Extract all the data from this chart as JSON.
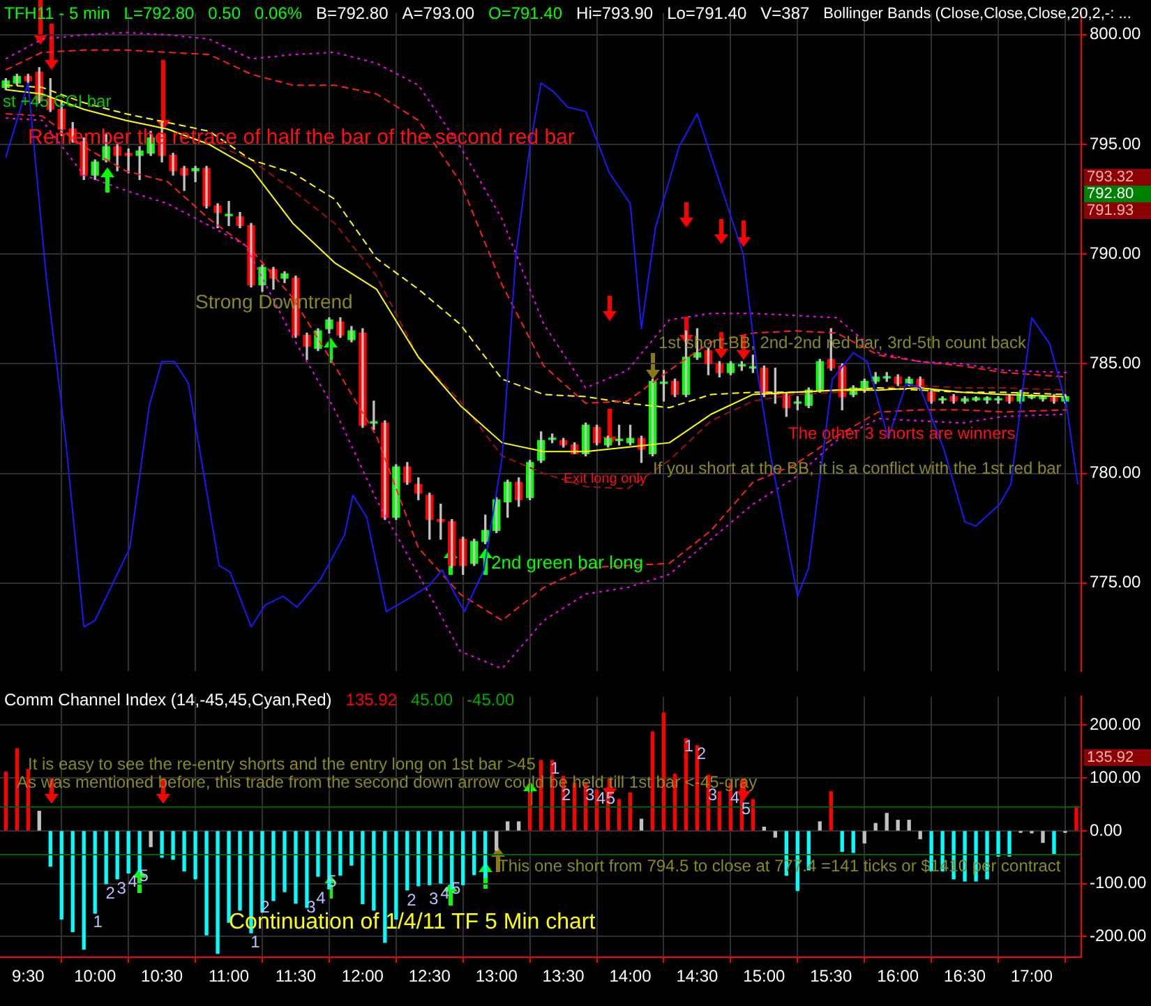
{
  "chart_data": [
    {
      "type": "candlestick",
      "title": "TFH11 - 5 min",
      "x": [
        9.3333,
        9.4167,
        9.5,
        9.5833,
        9.6667,
        9.75,
        9.8333,
        9.9167,
        10,
        10.0833,
        10.1667,
        10.25,
        10.3333,
        10.4167,
        10.5,
        10.5833,
        10.6667,
        10.75,
        10.8333,
        10.9167,
        11,
        11.0833,
        11.1667,
        11.25,
        11.3333,
        11.4167,
        11.5,
        11.5833,
        11.6667,
        11.75,
        11.8333,
        11.9167,
        12,
        12.0833,
        12.1667,
        12.25,
        12.3333,
        12.4167,
        12.5,
        12.5833,
        12.6667,
        12.75,
        12.8333,
        12.9167,
        13,
        13.0833,
        13.1667,
        13.25,
        13.3333,
        13.4167,
        13.5,
        13.5833,
        13.6667,
        13.75,
        13.8333,
        13.9167,
        14,
        14.0833,
        14.1667,
        14.25,
        14.3333,
        14.4167,
        14.5,
        14.5833,
        14.6667,
        14.75,
        14.8333,
        14.9167,
        15,
        15.0833,
        15.1667,
        15.25,
        15.3333,
        15.4167,
        15.5,
        15.5833,
        15.6667,
        15.75,
        15.8333,
        15.9167,
        16,
        16.0833,
        16.1667,
        16.25,
        16.3333,
        16.4167,
        16.5,
        16.5833,
        16.6667,
        16.75,
        16.8333,
        16.9167,
        17,
        17.0833,
        17.1667,
        17.25
      ],
      "ohlc": [
        [
          797.6,
          798.0,
          797.5,
          797.9
        ],
        [
          797.8,
          798.2,
          797.7,
          798.1
        ],
        [
          798.1,
          798.2,
          797.8,
          797.9
        ],
        [
          798.3,
          798.5,
          796.9,
          797.0
        ],
        [
          797.1,
          798.0,
          796.5,
          796.6
        ],
        [
          796.6,
          797.0,
          795.4,
          795.7
        ],
        [
          795.7,
          796.0,
          795.1,
          795.2
        ],
        [
          795.1,
          795.3,
          793.4,
          793.6
        ],
        [
          793.6,
          794.3,
          793.4,
          794.2
        ],
        [
          794.3,
          795.5,
          794.2,
          794.9
        ],
        [
          794.9,
          795.0,
          793.8,
          794.5
        ],
        [
          794.6,
          794.8,
          793.7,
          794.5
        ],
        [
          794.5,
          794.9,
          793.4,
          794.7
        ],
        [
          794.6,
          795.6,
          794.5,
          795.3
        ],
        [
          795.5,
          796.0,
          794.2,
          794.5
        ],
        [
          794.5,
          794.6,
          793.6,
          793.8
        ],
        [
          793.9,
          794.0,
          792.9,
          793.6
        ],
        [
          793.8,
          794.0,
          793.3,
          793.9
        ],
        [
          793.9,
          794.0,
          792.1,
          792.2
        ],
        [
          792.2,
          792.3,
          791.2,
          791.9
        ],
        [
          791.75,
          792.4,
          791.3,
          791.8
        ],
        [
          791.7,
          791.9,
          791.2,
          791.3
        ],
        [
          791.3,
          791.4,
          788.5,
          788.6
        ],
        [
          788.6,
          789.5,
          788.3,
          789.4
        ],
        [
          789.3,
          789.4,
          788.4,
          788.9
        ],
        [
          788.9,
          789.2,
          788.7,
          789.1
        ],
        [
          788.9,
          789.0,
          786.2,
          786.3
        ],
        [
          786.3,
          786.4,
          785.2,
          785.8
        ],
        [
          785.7,
          786.6,
          785.6,
          786.5
        ],
        [
          786.6,
          787.1,
          786.4,
          787.0
        ],
        [
          786.9,
          787.1,
          786.2,
          786.3
        ],
        [
          786.1,
          786.7,
          786.0,
          786.5
        ],
        [
          786.4,
          786.6,
          782.1,
          782.2
        ],
        [
          782.3,
          783.3,
          782.0,
          782.3
        ],
        [
          782.3,
          782.4,
          777.9,
          778.0
        ],
        [
          778.0,
          780.4,
          777.9,
          780.3
        ],
        [
          780.3,
          780.5,
          779.5,
          779.6
        ],
        [
          779.5,
          779.8,
          778.8,
          779.1
        ],
        [
          779.0,
          779.1,
          777.0,
          777.9
        ],
        [
          777.9,
          778.6,
          777.0,
          777.8
        ],
        [
          777.8,
          777.9,
          775.7,
          775.8
        ],
        [
          777.0,
          777.1,
          775.4,
          775.8
        ],
        [
          775.9,
          777.0,
          775.8,
          776.9
        ],
        [
          776.9,
          778.1,
          776.8,
          777.4
        ],
        [
          777.4,
          778.9,
          777.3,
          778.8
        ],
        [
          778.7,
          779.7,
          778.0,
          779.6
        ],
        [
          779.6,
          779.8,
          778.5,
          778.8
        ],
        [
          778.9,
          780.6,
          778.8,
          780.5
        ],
        [
          780.6,
          781.9,
          780.5,
          781.5
        ],
        [
          781.55,
          781.8,
          781.4,
          781.6
        ],
        [
          781.5,
          781.6,
          781.2,
          781.3
        ],
        [
          781.3,
          781.4,
          780.9,
          780.9
        ],
        [
          780.9,
          782.3,
          780.8,
          782.2
        ],
        [
          782.1,
          782.2,
          781.3,
          781.4
        ],
        [
          781.3,
          781.7,
          781.2,
          781.6
        ],
        [
          781.5,
          782.2,
          781.3,
          781.5
        ],
        [
          781.4,
          782.2,
          781.3,
          781.6
        ],
        [
          781.6,
          781.7,
          780.5,
          781.1
        ],
        [
          780.9,
          784.3,
          780.8,
          784.2
        ],
        [
          784.1,
          784.7,
          783.3,
          784.1
        ],
        [
          784.2,
          784.3,
          783.5,
          783.6
        ],
        [
          783.6,
          786.5,
          783.5,
          785.3
        ],
        [
          785.3,
          786.6,
          785.2,
          785.5
        ],
        [
          785.6,
          785.7,
          784.5,
          785.0
        ],
        [
          785.0,
          785.1,
          784.4,
          784.6
        ],
        [
          784.6,
          785.1,
          784.5,
          785.0
        ],
        [
          784.9,
          785.1,
          784.7,
          784.9
        ],
        [
          784.8,
          785.4,
          784.6,
          784.8
        ],
        [
          784.8,
          784.9,
          783.5,
          783.6
        ],
        [
          783.6,
          784.8,
          783.2,
          783.6
        ],
        [
          783.6,
          783.7,
          782.6,
          783.0
        ],
        [
          783.2,
          783.5,
          782.9,
          783.25
        ],
        [
          783.1,
          783.9,
          783.0,
          783.8
        ],
        [
          783.8,
          785.2,
          783.7,
          785.1
        ],
        [
          785.2,
          786.6,
          784.7,
          784.8
        ],
        [
          784.9,
          785.0,
          782.9,
          783.5
        ],
        [
          783.6,
          784.0,
          783.5,
          783.9
        ],
        [
          783.8,
          784.3,
          783.7,
          784.2
        ],
        [
          784.2,
          784.6,
          784.1,
          784.4
        ],
        [
          784.35,
          784.6,
          784.2,
          784.4
        ],
        [
          784.4,
          784.5,
          784.0,
          784.1
        ],
        [
          784.1,
          784.4,
          784.0,
          784.3
        ],
        [
          784.3,
          784.4,
          783.8,
          783.9
        ],
        [
          783.7,
          783.8,
          783.2,
          783.3
        ],
        [
          783.35,
          783.5,
          783.2,
          783.35
        ],
        [
          783.5,
          783.6,
          783.2,
          783.3
        ],
        [
          783.3,
          783.5,
          783.2,
          783.4
        ],
        [
          783.35,
          783.5,
          783.3,
          783.45
        ],
        [
          783.35,
          783.5,
          783.2,
          783.45
        ],
        [
          783.35,
          783.5,
          783.2,
          783.35
        ],
        [
          783.5,
          783.6,
          783.2,
          783.3
        ],
        [
          783.3,
          783.8,
          783.2,
          783.7
        ],
        [
          783.45,
          783.6,
          783.4,
          783.55
        ],
        [
          783.4,
          783.55,
          783.3,
          783.5
        ],
        [
          783.5,
          783.6,
          783.2,
          783.3
        ],
        [
          783.3,
          783.6,
          783.2,
          783.5
        ]
      ],
      "colors": [
        "#00ff00",
        "#00ff00",
        "#ff0000",
        "#ff0000",
        "#ff0000",
        "#ff0000",
        "#ff0000",
        "#ff0000",
        "#00ff00",
        "#00ff00",
        "#ff0000",
        "#ff0000",
        "#00ff00",
        "#00ff00",
        "#ff0000",
        "#ff0000",
        "#ff0000",
        "#00ff00",
        "#ff0000",
        "#ff0000",
        "#00ff00",
        "#ff0000",
        "#ff0000",
        "#00ff00",
        "#ff0000",
        "#00ff00",
        "#ff0000",
        "#ff0000",
        "#00ff00",
        "#00ff00",
        "#ff0000",
        "#00ff00",
        "#ff0000",
        "#00ff00",
        "#ff0000",
        "#00ff00",
        "#ff0000",
        "#ff0000",
        "#ff0000",
        "#ff0000",
        "#ff0000",
        "#ff0000",
        "#00ff00",
        "#00ff00",
        "#00ff00",
        "#00ff00",
        "#ff0000",
        "#00ff00",
        "#00ff00",
        "#00ff00",
        "#ff0000",
        "#ff0000",
        "#00ff00",
        "#ff0000",
        "#00ff00",
        "#00ff00",
        "#00ff00",
        "#ff0000",
        "#00ff00",
        "#00ff00",
        "#ff0000",
        "#00ff00",
        "#00ff00",
        "#ff0000",
        "#ff0000",
        "#00ff00",
        "#00ff00",
        "#00ff00",
        "#ff0000",
        "#ff0000",
        "#ff0000",
        "#00ff00",
        "#00ff00",
        "#00ff00",
        "#ff0000",
        "#ff0000",
        "#00ff00",
        "#00ff00",
        "#00ff00",
        "#00ff00",
        "#ff0000",
        "#00ff00",
        "#ff0000",
        "#ff0000",
        "#00ff00",
        "#ff0000",
        "#00ff00",
        "#00ff00",
        "#00ff00",
        "#00ff00",
        "#ff0000",
        "#00ff00",
        "#00ff00",
        "#00ff00",
        "#ff0000",
        "#00ff00"
      ],
      "series": [
        {
          "type": "line",
          "color": "#1a1aff",
          "line_style": "solid",
          "x": [
            9.333,
            9.5,
            9.635,
            9.781,
            9.917,
            10.0,
            10.26,
            10.406,
            10.5,
            10.594,
            10.698,
            10.823,
            10.927,
            11.01,
            11.167,
            11.271,
            11.406,
            11.51,
            11.688,
            11.865,
            11.927,
            12.031,
            12.177,
            12.344,
            12.5,
            12.594,
            12.76,
            12.906,
            13.042,
            13.146,
            13.25,
            13.333,
            13.427,
            13.531,
            13.667,
            13.844,
            14.0,
            14.083,
            14.188,
            14.365,
            14.5,
            14.677,
            14.844,
            14.948,
            15.052,
            15.25,
            15.333,
            15.51,
            15.667,
            15.771,
            15.927,
            16.063,
            16.167,
            16.344,
            16.5,
            16.583,
            16.76,
            16.844,
            17.0,
            17.135,
            17.26,
            17.344
          ],
          "values": [
            794.4,
            797.8,
            789.0,
            781.5,
            773.0,
            773.3,
            776.6,
            783.1,
            785.1,
            785.1,
            784.1,
            779.6,
            775.8,
            775.5,
            773.0,
            774.0,
            774.4,
            773.9,
            775.2,
            777.2,
            779.0,
            778.0,
            773.7,
            774.3,
            774.9,
            775.6,
            773.7,
            775.6,
            780.7,
            790.0,
            794.9,
            797.8,
            797.4,
            796.7,
            796.5,
            793.7,
            792.3,
            786.6,
            791.2,
            794.9,
            796.4,
            793.1,
            790.0,
            784.7,
            780.7,
            774.4,
            775.7,
            784.3,
            785.5,
            785.1,
            781.6,
            784.1,
            783.9,
            781.1,
            777.8,
            777.6,
            778.6,
            779.5,
            787.1,
            785.9,
            783.1,
            779.5
          ]
        },
        {
          "type": "line",
          "color": "#ff00ff",
          "line_style": "dotted",
          "x": [
            9.333,
            9.604,
            9.917,
            10.229,
            10.542,
            10.854,
            11.167,
            11.479,
            11.792,
            12.104,
            12.417,
            12.729,
            13.042,
            13.354,
            13.667,
            13.979,
            14.292,
            14.604,
            14.917,
            15.229,
            15.542,
            15.854,
            16.167,
            16.479,
            16.792,
            17.26
          ],
          "values": [
            798.9,
            799.8,
            800.0,
            800.1,
            800.0,
            799.8,
            798.9,
            799.1,
            799.2,
            798.7,
            797.7,
            794.9,
            791.6,
            786.8,
            783.9,
            784.7,
            787.0,
            787.3,
            787.3,
            787.2,
            787.1,
            785.5,
            785.1,
            785.0,
            784.7,
            784.6
          ]
        },
        {
          "type": "line",
          "color": "#ff00ff",
          "line_style": "dotted",
          "x": [
            9.333,
            9.604,
            9.917,
            10.229,
            10.542,
            10.854,
            11.125,
            11.479,
            11.792,
            12.104,
            12.417,
            12.729,
            13.042,
            13.354,
            13.667,
            13.979,
            14.292,
            14.604,
            14.917,
            15.229,
            15.542,
            15.854,
            16.167,
            16.479,
            16.792,
            17.26
          ],
          "values": [
            796.2,
            796.1,
            793.6,
            792.9,
            792.3,
            791.3,
            790.4,
            786.2,
            782.9,
            778.8,
            775.4,
            771.9,
            771.1,
            773.3,
            774.5,
            774.8,
            775.4,
            777.0,
            778.6,
            779.8,
            781.5,
            782.5,
            782.4,
            782.3,
            782.6,
            782.7
          ]
        },
        {
          "type": "line",
          "color": "#ff2020",
          "line_style": "dashed",
          "x": [
            9.333,
            9.604,
            9.917,
            10.229,
            10.542,
            10.854,
            11.167,
            11.479,
            11.792,
            12.104,
            12.417,
            12.729,
            13.042,
            13.354,
            13.667,
            13.979,
            14.292,
            14.604,
            14.917,
            15.229,
            15.542,
            15.854,
            16.167,
            16.479,
            16.792,
            17.26
          ],
          "values": [
            798.4,
            799.2,
            799.3,
            799.3,
            799.2,
            799.1,
            798.2,
            797.7,
            797.7,
            797.3,
            796.1,
            793.3,
            788.6,
            784.9,
            783.2,
            783.3,
            784.7,
            786.0,
            786.4,
            786.5,
            786.4,
            785.4,
            785.1,
            784.9,
            784.6,
            784.4
          ]
        },
        {
          "type": "line",
          "color": "#ff2020",
          "line_style": "dashed",
          "x": [
            9.333,
            9.604,
            9.917,
            10.229,
            10.542,
            10.854,
            11.167,
            11.479,
            11.792,
            12.104,
            12.417,
            12.729,
            13.042,
            13.354,
            13.667,
            13.979,
            14.292,
            14.604,
            14.917,
            15.229,
            15.542,
            15.854,
            16.167,
            16.479,
            16.792,
            17.26
          ],
          "values": [
            796.4,
            796.3,
            794.9,
            793.8,
            793.3,
            791.6,
            790.2,
            788.0,
            784.9,
            781.7,
            776.6,
            774.5,
            773.3,
            774.8,
            775.7,
            775.8,
            775.9,
            777.4,
            779.6,
            780.4,
            781.7,
            782.8,
            782.9,
            782.9,
            782.8,
            782.9
          ]
        },
        {
          "type": "line",
          "color": "#ffff00",
          "line_style": "dashed",
          "x": [
            9.333,
            9.604,
            9.917,
            10.229,
            10.542,
            10.854,
            11.167,
            11.479,
            11.792,
            12.104,
            12.417,
            12.729,
            13.042,
            13.354,
            13.667,
            13.979,
            14.292,
            14.604,
            14.917,
            15.229,
            15.542,
            15.854,
            16.167,
            16.479,
            16.792,
            17.26
          ],
          "values": [
            797.7,
            797.6,
            796.9,
            796.4,
            796.0,
            795.6,
            794.3,
            793.7,
            792.5,
            789.8,
            788.4,
            786.8,
            784.3,
            783.6,
            783.5,
            783.2,
            783.0,
            783.6,
            783.7,
            783.7,
            783.8,
            783.9,
            783.8,
            783.7,
            783.7,
            783.6
          ]
        },
        {
          "type": "line",
          "color": "#ffff00",
          "line_style": "solid",
          "x": [
            9.333,
            9.604,
            9.917,
            10.229,
            10.542,
            10.854,
            11.167,
            11.479,
            11.792,
            12.104,
            12.417,
            12.729,
            13.042,
            13.354,
            13.667,
            13.979,
            14.292,
            14.604,
            14.917,
            15.229,
            15.542,
            15.854,
            16.167,
            16.479,
            16.792,
            17.26
          ],
          "values": [
            797.5,
            797.3,
            796.6,
            796.1,
            795.7,
            795.0,
            793.9,
            791.4,
            789.6,
            788.4,
            785.3,
            783.1,
            781.4,
            781.0,
            781.0,
            781.2,
            781.4,
            782.7,
            783.6,
            783.7,
            783.8,
            783.8,
            783.9,
            783.7,
            783.6,
            783.5
          ]
        },
        {
          "type": "line",
          "color": "#a01010",
          "line_style": "dashed",
          "x": [
            10.854,
            11.167,
            11.479,
            11.792,
            12.104,
            12.417,
            12.729,
            13.042,
            13.354,
            13.667,
            13.979,
            14.292,
            14.604,
            14.917,
            15.229,
            15.542,
            15.854,
            16.167,
            16.479,
            16.792,
            17.26
          ],
          "values": [
            795.1,
            794.3,
            792.9,
            791.4,
            789.0,
            785.3,
            783.3,
            780.8,
            780.0,
            779.4,
            779.3,
            780.6,
            782.4,
            783.3,
            783.6,
            783.7,
            783.9,
            784.0,
            783.9,
            783.9,
            783.8
          ]
        }
      ],
      "marker": "none",
      "xlim": [
        9.29,
        17.37
      ],
      "xticks": [
        9.5,
        10,
        10.5,
        11,
        11.5,
        12,
        12.5,
        13,
        13.5,
        14,
        14.5,
        15,
        15.5,
        16,
        16.5,
        17
      ],
      "ylim": [
        771,
        801
      ],
      "yticks": [
        {
          "value": 775,
          "label": "775.00"
        },
        {
          "value": 780,
          "label": "780.00"
        },
        {
          "value": 785,
          "label": "785.00"
        },
        {
          "value": 790,
          "label": "790.00"
        },
        {
          "value": 795,
          "label": "795.00"
        },
        {
          "value": 800,
          "label": "800.00"
        }
      ],
      "grid": true,
      "tick_labels": "y",
      "annotations": [
        "L=792.80",
        "0.50",
        "0.06%",
        "B=792.80",
        "A=793.00",
        "O=791.40",
        "Hi=793.90",
        "Lo=791.40",
        "V=387",
        "Bollinger Bands (Close,Close,Close,20,2,-: ...",
        "st +45 CCI bar",
        "Remember the retrace of half the bar of the second red bar",
        "Strong Downtrend",
        "1st short-BB, 2nd-2nd red bar, 3rd-5th count back",
        "Exit long only",
        "If you short at the BB, it is a conflict with the 1st red bar",
        "The other 3 shorts are winners",
        "2nd green bar long",
        "793.32",
        "792.80",
        "791.93"
      ]
    },
    {
      "type": "bar",
      "x": [
        9.3333,
        9.4167,
        9.5,
        9.5833,
        9.6667,
        9.75,
        9.8333,
        9.9167,
        10,
        10.0833,
        10.1667,
        10.25,
        10.3333,
        10.4167,
        10.5,
        10.5833,
        10.6667,
        10.75,
        10.8333,
        10.9167,
        11,
        11.0833,
        11.1667,
        11.25,
        11.3333,
        11.4167,
        11.5,
        11.5833,
        11.6667,
        11.75,
        11.8333,
        11.9167,
        12,
        12.0833,
        12.1667,
        12.25,
        12.3333,
        12.4167,
        12.5,
        12.5833,
        12.6667,
        12.75,
        12.8333,
        12.9167,
        13,
        13.0833,
        13.1667,
        13.25,
        13.3333,
        13.4167,
        13.5,
        13.5833,
        13.6667,
        13.75,
        13.8333,
        13.9167,
        14,
        14.0833,
        14.1667,
        14.25,
        14.3333,
        14.4167,
        14.5,
        14.5833,
        14.6667,
        14.75,
        14.8333,
        14.9167,
        15,
        15.0833,
        15.1667,
        15.25,
        15.3333,
        15.4167,
        15.5,
        15.5833,
        15.6667,
        15.75,
        15.8333,
        15.9167,
        16,
        16.0833,
        16.1667,
        16.25,
        16.3333,
        16.4167,
        16.5,
        16.5833,
        16.6667,
        16.75,
        16.8333,
        16.9167,
        17,
        17.0833,
        17.1667,
        17.25,
        17.3333
      ],
      "values": [
        111,
        155,
        116,
        37,
        -67,
        -167,
        -191,
        -224,
        -156,
        -100,
        -91,
        -80,
        -77,
        -30,
        -50,
        -54,
        -76,
        -91,
        -197,
        -232,
        -173,
        -150,
        -193,
        -154,
        -132,
        -115,
        -137,
        -145,
        -86,
        -110,
        -84,
        -65,
        -138,
        -150,
        -211,
        -167,
        -112,
        -104,
        -102,
        -99,
        -110,
        -102,
        -83,
        -89,
        -37,
        17,
        17,
        72,
        133,
        133,
        103,
        90,
        91,
        77,
        81,
        59,
        72,
        22,
        187,
        223,
        107,
        174,
        161,
        105,
        74,
        90,
        94,
        59,
        7,
        -12,
        -84,
        -113,
        -74,
        17,
        74,
        -39,
        -41,
        -23,
        14,
        33,
        20,
        20,
        -15,
        -76,
        -76,
        -91,
        -95,
        -95,
        -91,
        -48,
        -48,
        -3,
        -4,
        -22,
        -45,
        -3,
        46
      ],
      "colors": [
        "#ff0000",
        "#ff0000",
        "#ff0000",
        "#c0c0c0",
        "#00ffff",
        "#00ffff",
        "#00ffff",
        "#00ffff",
        "#00ffff",
        "#00ffff",
        "#00ffff",
        "#00ffff",
        "#00ffff",
        "#c0c0c0",
        "#00ffff",
        "#00ffff",
        "#00ffff",
        "#00ffff",
        "#00ffff",
        "#00ffff",
        "#00ffff",
        "#00ffff",
        "#00ffff",
        "#00ffff",
        "#00ffff",
        "#00ffff",
        "#00ffff",
        "#00ffff",
        "#00ffff",
        "#00ffff",
        "#00ffff",
        "#00ffff",
        "#00ffff",
        "#00ffff",
        "#00ffff",
        "#00ffff",
        "#00ffff",
        "#00ffff",
        "#00ffff",
        "#00ffff",
        "#00ffff",
        "#00ffff",
        "#00ffff",
        "#00ffff",
        "#c0c0c0",
        "#c0c0c0",
        "#c0c0c0",
        "#ff0000",
        "#ff0000",
        "#ff0000",
        "#ff0000",
        "#ff0000",
        "#ff0000",
        "#ff0000",
        "#ff0000",
        "#ff0000",
        "#ff0000",
        "#c0c0c0",
        "#ff0000",
        "#ff0000",
        "#ff0000",
        "#ff0000",
        "#ff0000",
        "#ff0000",
        "#ff0000",
        "#ff0000",
        "#ff0000",
        "#ff0000",
        "#c0c0c0",
        "#c0c0c0",
        "#00ffff",
        "#00ffff",
        "#00ffff",
        "#c0c0c0",
        "#ff0000",
        "#00ffff",
        "#00ffff",
        "#c0c0c0",
        "#c0c0c0",
        "#c0c0c0",
        "#c0c0c0",
        "#c0c0c0",
        "#c0c0c0",
        "#00ffff",
        "#00ffff",
        "#00ffff",
        "#00ffff",
        "#00ffff",
        "#00ffff",
        "#00ffff",
        "#00ffff",
        "#c0c0c0",
        "#c0c0c0",
        "#c0c0c0",
        "#00ffff",
        "#c0c0c0",
        "#ff0000"
      ],
      "ref_lines": [
        {
          "axis": "y",
          "value": 45,
          "color": "#006400"
        },
        {
          "axis": "y",
          "value": -45,
          "color": "#006400"
        }
      ],
      "xlim": [
        9.29,
        17.37
      ],
      "xticks": [
        {
          "value": 9.5,
          "label": "9:30"
        },
        {
          "value": 10,
          "label": "10:00"
        },
        {
          "value": 10.5,
          "label": "10:30"
        },
        {
          "value": 11,
          "label": "11:00"
        },
        {
          "value": 11.5,
          "label": "11:30"
        },
        {
          "value": 12,
          "label": "12:00"
        },
        {
          "value": 12.5,
          "label": "12:30"
        },
        {
          "value": 13,
          "label": "13:00"
        },
        {
          "value": 13.5,
          "label": "13:30"
        },
        {
          "value": 14,
          "label": "14:00"
        },
        {
          "value": 14.5,
          "label": "14:30"
        },
        {
          "value": 15,
          "label": "15:00"
        },
        {
          "value": 15.5,
          "label": "15:30"
        },
        {
          "value": 16,
          "label": "16:00"
        },
        {
          "value": 16.5,
          "label": "16:30"
        },
        {
          "value": 17,
          "label": "17:00"
        }
      ],
      "ylim": [
        -239,
        254
      ],
      "yticks": [
        {
          "value": -200,
          "label": "-200.00"
        },
        {
          "value": -100,
          "label": "-100.00"
        },
        {
          "value": 0,
          "label": "0.00"
        },
        {
          "value": 100,
          "label": "100.00"
        },
        {
          "value": 200,
          "label": "200.00"
        }
      ],
      "grid": true,
      "annotations": [
        "Comm Channel Index (14,-45,45,Cyan,Red)",
        "135.92",
        "45.00",
        "-45.00",
        "It is easy to see the re-entry shorts and the entry long on 1st bar >45",
        "As was mentioned before, this trade from the second down arrow could be held till 1st bar <-45-gray",
        "This one short from 794.5 to close at 777.4 =141 ticks or $1410 per contract",
        "Continuation of 1/4/11 TF 5 Min chart",
        "135.92",
        "1",
        "2",
        "3",
        "4",
        "5",
        "1",
        "2",
        "3",
        "4",
        "5",
        "2",
        "3",
        "4",
        "5",
        "1",
        "2",
        "3",
        "4",
        "5",
        "1",
        "2",
        "3",
        "4",
        "5"
      ]
    }
  ]
}
